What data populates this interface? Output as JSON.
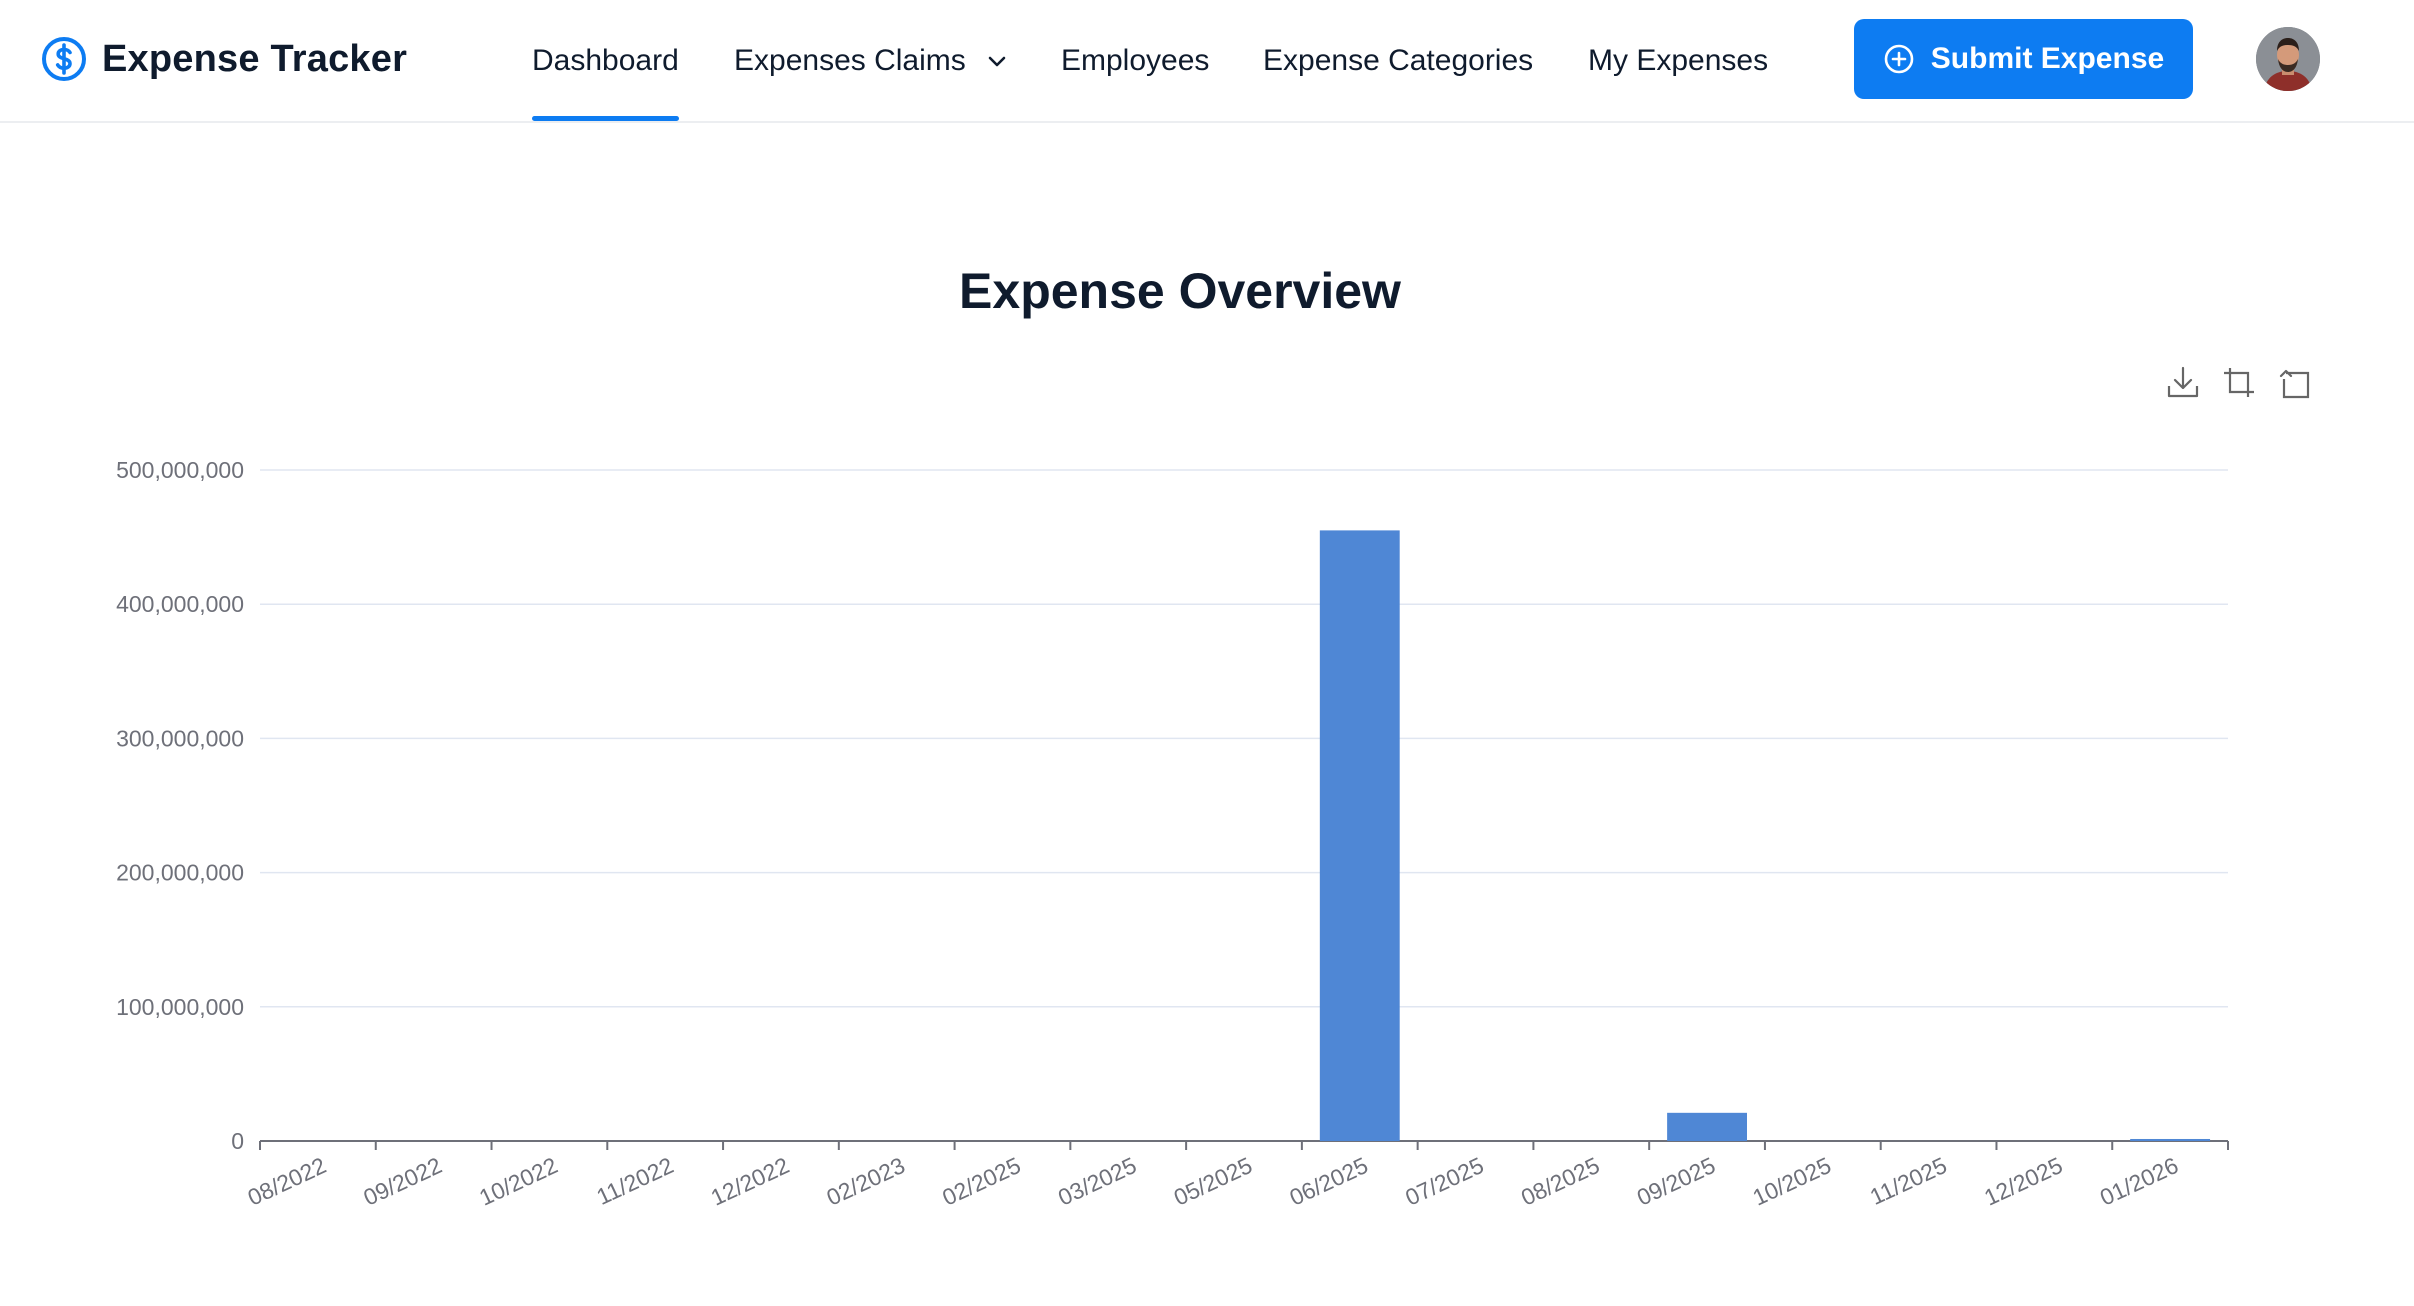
{
  "app": {
    "name": "Expense Tracker",
    "logo_icon": "dollar-circle-icon",
    "accent_color": "#0d7cf2"
  },
  "nav": {
    "items": [
      {
        "label": "Dashboard",
        "active": true
      },
      {
        "label": "Expenses Claims",
        "dropdown": true
      },
      {
        "label": "Employees"
      },
      {
        "label": "Expense Categories"
      },
      {
        "label": "My Expenses"
      }
    ]
  },
  "actions": {
    "submit_label": "Submit Expense",
    "submit_icon": "plus-circle-icon"
  },
  "user": {
    "avatar_icon": "user-avatar"
  },
  "toolbox": [
    "download-icon",
    "zoom-icon",
    "restore-icon"
  ],
  "chart_data": {
    "type": "bar",
    "title": "Expense Overview",
    "categories": [
      "08/2022",
      "09/2022",
      "10/2022",
      "11/2022",
      "12/2022",
      "02/2023",
      "02/2025",
      "03/2025",
      "05/2025",
      "06/2025",
      "07/2025",
      "08/2025",
      "09/2025",
      "10/2025",
      "11/2025",
      "12/2025",
      "01/2026"
    ],
    "values": [
      0,
      0,
      0,
      0,
      0,
      0,
      0,
      0,
      0,
      455000000,
      0,
      0,
      21000000,
      0,
      0,
      0,
      1500000
    ],
    "yticks": [
      "0",
      "100,000,000",
      "200,000,000",
      "300,000,000",
      "400,000,000",
      "500,000,000"
    ],
    "ylim": [
      0,
      500000000
    ],
    "bar_color": "#4f87d5",
    "grid": true,
    "xlabel": "",
    "ylabel": ""
  }
}
